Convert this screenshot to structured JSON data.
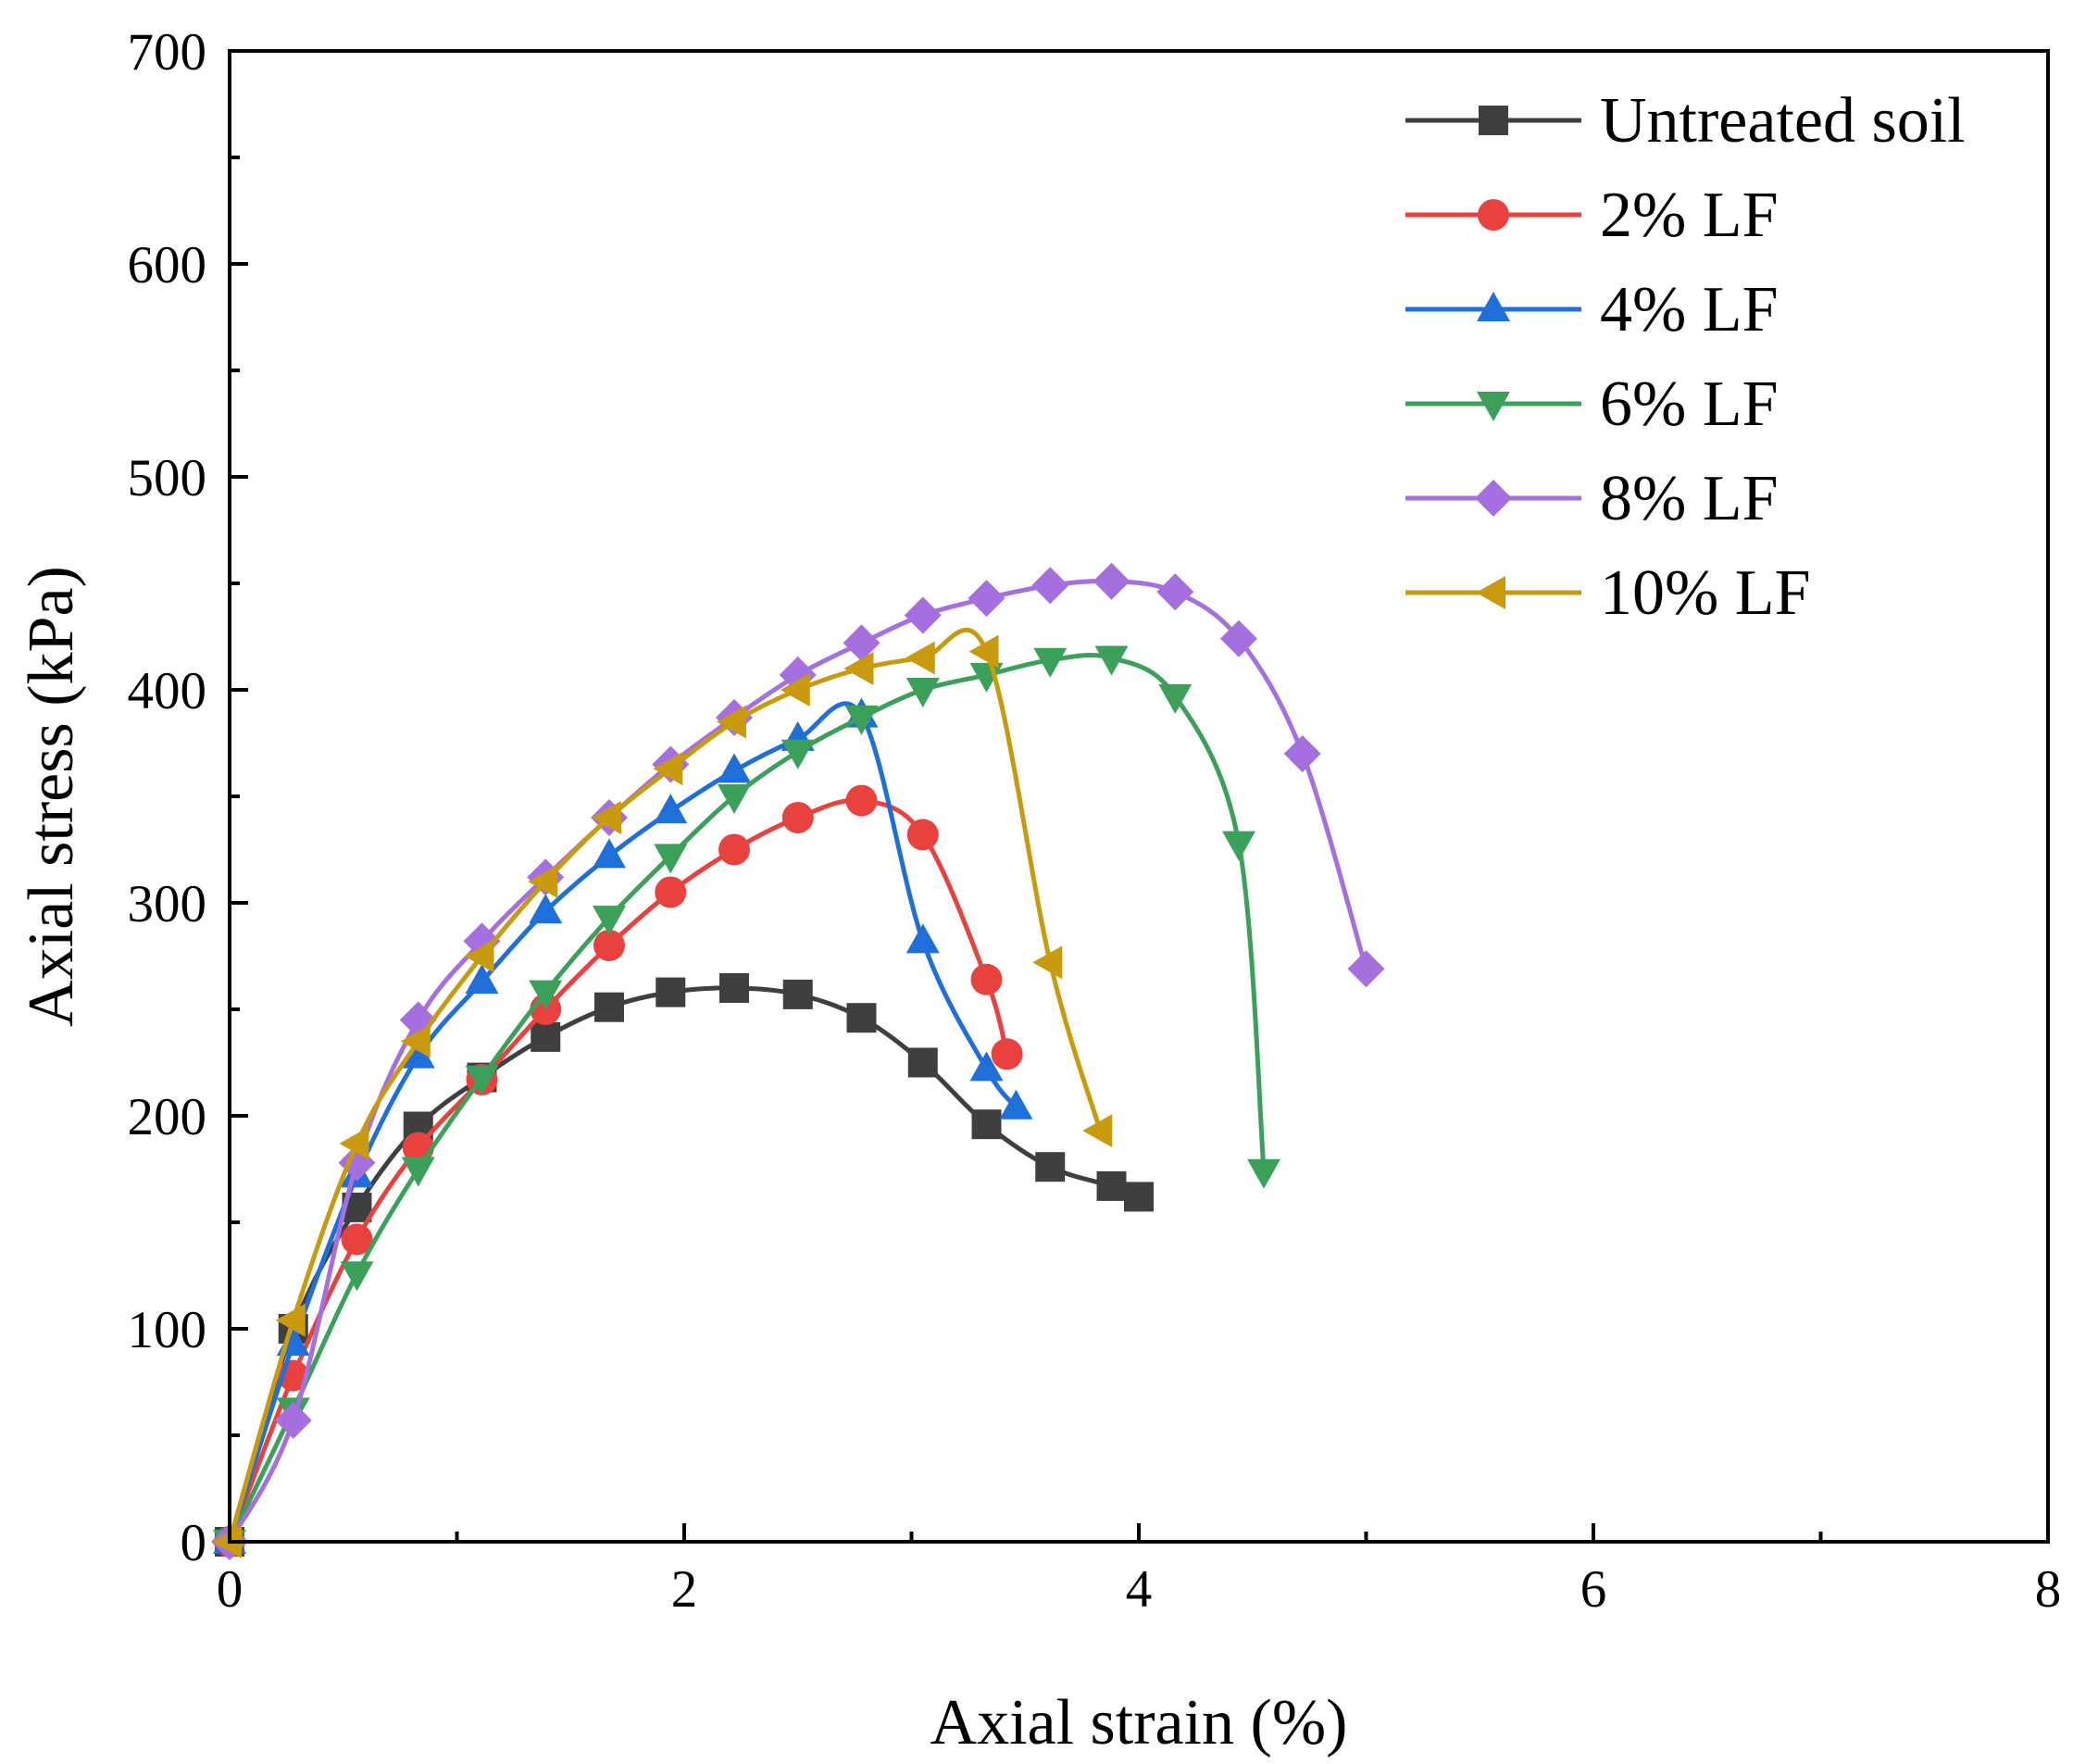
{
  "chart_data": {
    "type": "line",
    "title": "",
    "xlabel": "Axial strain (%)",
    "ylabel": "Axial stress (kPa)",
    "xlim": [
      0,
      8
    ],
    "ylim": [
      0,
      700
    ],
    "xticks": [
      0,
      2,
      4,
      6,
      8
    ],
    "yticks": [
      0,
      100,
      200,
      300,
      400,
      500,
      600,
      700
    ],
    "grid": false,
    "legend_position": "top-right",
    "series": [
      {
        "name": "Untreated soil",
        "color": "#3f3f3f",
        "marker": "square",
        "x": [
          0,
          0.28,
          0.56,
          0.83,
          1.11,
          1.39,
          1.67,
          1.94,
          2.22,
          2.5,
          2.78,
          3.05,
          3.33,
          3.61,
          3.88,
          4.0
        ],
        "y": [
          0,
          100,
          157,
          195,
          218,
          237,
          251,
          258,
          260,
          257,
          246,
          225,
          196,
          176,
          167,
          162
        ]
      },
      {
        "name": "2% LF",
        "color": "#e8413e",
        "marker": "circle",
        "x": [
          0,
          0.28,
          0.56,
          0.83,
          1.11,
          1.39,
          1.67,
          1.94,
          2.22,
          2.5,
          2.78,
          3.05,
          3.33,
          3.42
        ],
        "y": [
          0,
          78,
          142,
          185,
          217,
          250,
          280,
          305,
          325,
          340,
          348,
          332,
          264,
          229
        ]
      },
      {
        "name": "4% LF",
        "color": "#1f6fdb",
        "marker": "triangle-up",
        "x": [
          0,
          0.28,
          0.56,
          0.83,
          1.11,
          1.39,
          1.67,
          1.94,
          2.22,
          2.5,
          2.78,
          3.05,
          3.33,
          3.46
        ],
        "y": [
          0,
          93,
          172,
          228,
          263,
          296,
          322,
          343,
          362,
          377,
          388,
          282,
          222,
          204
        ]
      },
      {
        "name": "6% LF",
        "color": "#3aa05a",
        "marker": "triangle-down",
        "x": [
          0,
          0.28,
          0.56,
          0.83,
          1.11,
          1.39,
          1.67,
          1.94,
          2.22,
          2.5,
          2.78,
          3.05,
          3.33,
          3.61,
          3.88,
          4.16,
          4.44,
          4.55
        ],
        "y": [
          0,
          62,
          126,
          175,
          218,
          258,
          293,
          322,
          350,
          371,
          387,
          400,
          407,
          414,
          415,
          397,
          328,
          174
        ]
      },
      {
        "name": "8% LF",
        "color": "#a66fe0",
        "marker": "diamond",
        "x": [
          0,
          0.28,
          0.56,
          0.83,
          1.11,
          1.39,
          1.67,
          1.94,
          2.22,
          2.5,
          2.78,
          3.05,
          3.33,
          3.61,
          3.88,
          4.16,
          4.44,
          4.72,
          5.0
        ],
        "y": [
          0,
          57,
          178,
          245,
          282,
          312,
          340,
          365,
          387,
          407,
          422,
          435,
          443,
          449,
          451,
          446,
          424,
          370,
          269
        ]
      },
      {
        "name": "10% LF",
        "color": "#c99a0e",
        "marker": "triangle-left",
        "x": [
          0,
          0.28,
          0.56,
          0.83,
          1.11,
          1.39,
          1.67,
          1.94,
          2.22,
          2.5,
          2.78,
          3.05,
          3.33,
          3.61,
          3.83
        ],
        "y": [
          0,
          104,
          187,
          235,
          275,
          310,
          340,
          363,
          385,
          400,
          410,
          415,
          418,
          272,
          193
        ]
      }
    ]
  }
}
